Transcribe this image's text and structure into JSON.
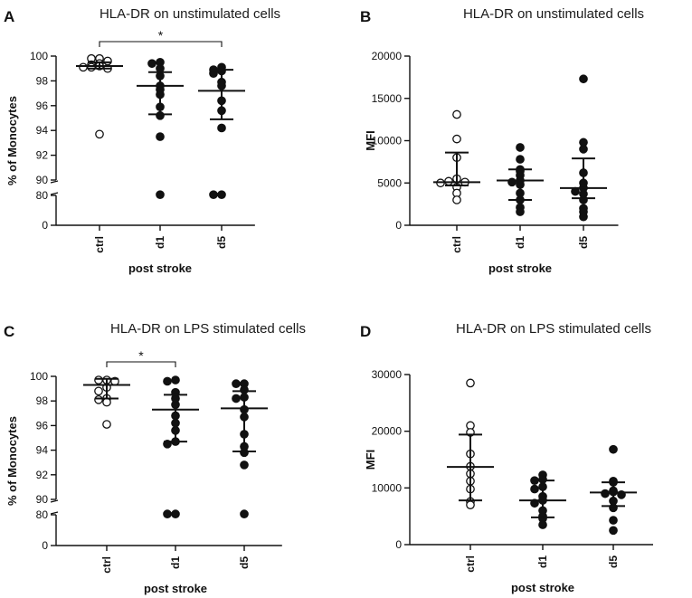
{
  "chart_data": [
    {
      "panel": "A",
      "type": "scatter",
      "title": "HLA-DR on unstimulated cells",
      "ylabel": "% of Monocytes",
      "xlabel": "post stroke",
      "categories": [
        "ctrl",
        "d1",
        "d5"
      ],
      "broken_axis": true,
      "ylim_upper": [
        90,
        100
      ],
      "ylim_lower": [
        0,
        80
      ],
      "yticks_upper": [
        90,
        92,
        94,
        96,
        98,
        100
      ],
      "yticks_lower": [
        0,
        80
      ],
      "series": [
        {
          "name": "ctrl",
          "filled": false,
          "values": [
            99.8,
            99.8,
            99.6,
            99.4,
            99.3,
            99.2,
            99.1,
            99.0,
            99.1,
            93.7
          ],
          "median": 99.2,
          "iqr": [
            99.0,
            99.5
          ]
        },
        {
          "name": "d1",
          "filled": true,
          "values": [
            99.5,
            99.4,
            99.0,
            98.4,
            97.6,
            97.3,
            96.9,
            95.9,
            95.2,
            93.5,
            82.0
          ],
          "median": 97.6,
          "iqr": [
            95.3,
            98.7
          ]
        },
        {
          "name": "d5",
          "filled": true,
          "values": [
            99.1,
            98.9,
            98.8,
            98.6,
            97.9,
            97.6,
            96.4,
            95.6,
            94.2,
            82.0,
            82.0
          ],
          "median": 97.2,
          "iqr": [
            94.9,
            98.9
          ]
        }
      ],
      "significance": [
        {
          "from": "ctrl",
          "to": "d5",
          "label": "*"
        }
      ]
    },
    {
      "panel": "B",
      "type": "scatter",
      "title": "HLA-DR on unstimulated cells",
      "ylabel": "MFI",
      "xlabel": "post stroke",
      "categories": [
        "ctrl",
        "d1",
        "d5"
      ],
      "ylim": [
        0,
        20000
      ],
      "yticks": [
        0,
        5000,
        10000,
        15000,
        20000
      ],
      "series": [
        {
          "name": "ctrl",
          "filled": false,
          "values": [
            13100,
            10200,
            8000,
            5500,
            5200,
            5100,
            5000,
            4500,
            3800,
            3000
          ],
          "median": 5100,
          "iqr": [
            4700,
            8600
          ]
        },
        {
          "name": "d1",
          "filled": true,
          "values": [
            9200,
            7800,
            6600,
            6400,
            5900,
            5300,
            5100,
            4800,
            3800,
            3000,
            2100,
            1600
          ],
          "median": 5300,
          "iqr": [
            3000,
            6600
          ]
        },
        {
          "name": "d5",
          "filled": true,
          "values": [
            17300,
            9800,
            9000,
            6200,
            5000,
            4400,
            4000,
            3700,
            3000,
            2000,
            1600,
            1000
          ],
          "median": 4400,
          "iqr": [
            3200,
            7900
          ]
        }
      ]
    },
    {
      "panel": "C",
      "type": "scatter",
      "title": "HLA-DR on LPS stimulated cells",
      "ylabel": "% of Monocytes",
      "xlabel": "post stroke",
      "categories": [
        "ctrl",
        "d1",
        "d5"
      ],
      "broken_axis": true,
      "ylim_upper": [
        90,
        100
      ],
      "ylim_lower": [
        0,
        80
      ],
      "yticks_upper": [
        90,
        92,
        94,
        96,
        98,
        100
      ],
      "yticks_lower": [
        0,
        80
      ],
      "series": [
        {
          "name": "ctrl",
          "filled": false,
          "values": [
            99.7,
            99.7,
            99.6,
            99.1,
            98.8,
            98.2,
            98.1,
            97.9,
            96.1
          ],
          "median": 99.3,
          "iqr": [
            98.2,
            99.8
          ]
        },
        {
          "name": "d1",
          "filled": true,
          "values": [
            99.7,
            99.6,
            98.7,
            98.2,
            97.7,
            96.8,
            96.2,
            95.6,
            94.7,
            94.5,
            82.0,
            82.0
          ],
          "median": 97.3,
          "iqr": [
            94.7,
            98.5
          ]
        },
        {
          "name": "d5",
          "filled": true,
          "values": [
            99.4,
            99.4,
            98.9,
            98.3,
            98.2,
            97.3,
            96.7,
            95.3,
            94.3,
            93.8,
            92.8,
            82.0
          ],
          "median": 97.4,
          "iqr": [
            93.9,
            98.8
          ]
        }
      ],
      "significance": [
        {
          "from": "ctrl",
          "to": "d1",
          "label": "*"
        }
      ]
    },
    {
      "panel": "D",
      "type": "scatter",
      "title": "HLA-DR on LPS stimulated cells",
      "ylabel": "MFI",
      "xlabel": "post stroke",
      "categories": [
        "ctrl",
        "d1",
        "d5"
      ],
      "ylim": [
        0,
        30000
      ],
      "yticks": [
        0,
        10000,
        20000,
        30000
      ],
      "series": [
        {
          "name": "ctrl",
          "filled": false,
          "values": [
            28500,
            21000,
            19800,
            16000,
            13800,
            12500,
            11200,
            9800,
            7600,
            7000
          ],
          "median": 13700,
          "iqr": [
            7800,
            19400
          ]
        },
        {
          "name": "d1",
          "filled": true,
          "values": [
            12300,
            11500,
            11300,
            10200,
            9800,
            8500,
            7800,
            7300,
            6000,
            5000,
            4600,
            3500
          ],
          "median": 7800,
          "iqr": [
            4800,
            11300
          ]
        },
        {
          "name": "d5",
          "filled": true,
          "values": [
            16800,
            11200,
            11000,
            9500,
            9300,
            9000,
            8800,
            7700,
            6500,
            4300,
            2500
          ],
          "median": 9200,
          "iqr": [
            6800,
            11000
          ]
        }
      ]
    }
  ]
}
